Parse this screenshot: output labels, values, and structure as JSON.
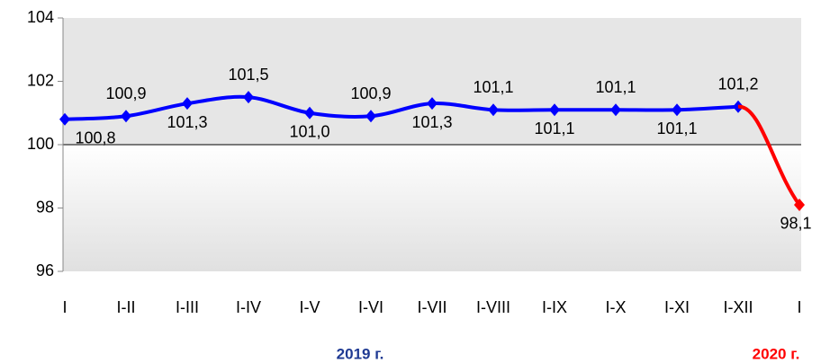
{
  "chart_data": {
    "type": "line",
    "categories": [
      "I",
      "I-II",
      "I-III",
      "I-IV",
      "I-V",
      "I-VI",
      "I-VII",
      "I-VIII",
      "I-IX",
      "I-X",
      "I-XI",
      "I-XII",
      "I"
    ],
    "series": [
      {
        "name": "2019 г.",
        "color": "#0000ff",
        "values": [
          100.8,
          100.9,
          101.3,
          101.5,
          101.0,
          100.9,
          101.3,
          101.1,
          101.1,
          101.1,
          101.1,
          101.2,
          null
        ],
        "value_labels": [
          "100,8",
          "100,9",
          "101,3",
          "101,5",
          "101,0",
          "100,9",
          "101,3",
          "101,1",
          "101,1",
          "101,1",
          "101,1",
          "101,2",
          null
        ]
      },
      {
        "name": "2020 г.",
        "color": "#ff0000",
        "values": [
          null,
          null,
          null,
          null,
          null,
          null,
          null,
          null,
          null,
          null,
          null,
          null,
          98.1
        ],
        "value_labels": [
          null,
          null,
          null,
          null,
          null,
          null,
          null,
          null,
          null,
          null,
          null,
          null,
          "98,1"
        ]
      }
    ],
    "ylim": [
      96,
      104
    ],
    "yticks": [
      96,
      98,
      100,
      102,
      104
    ],
    "baseline": 100
  }
}
